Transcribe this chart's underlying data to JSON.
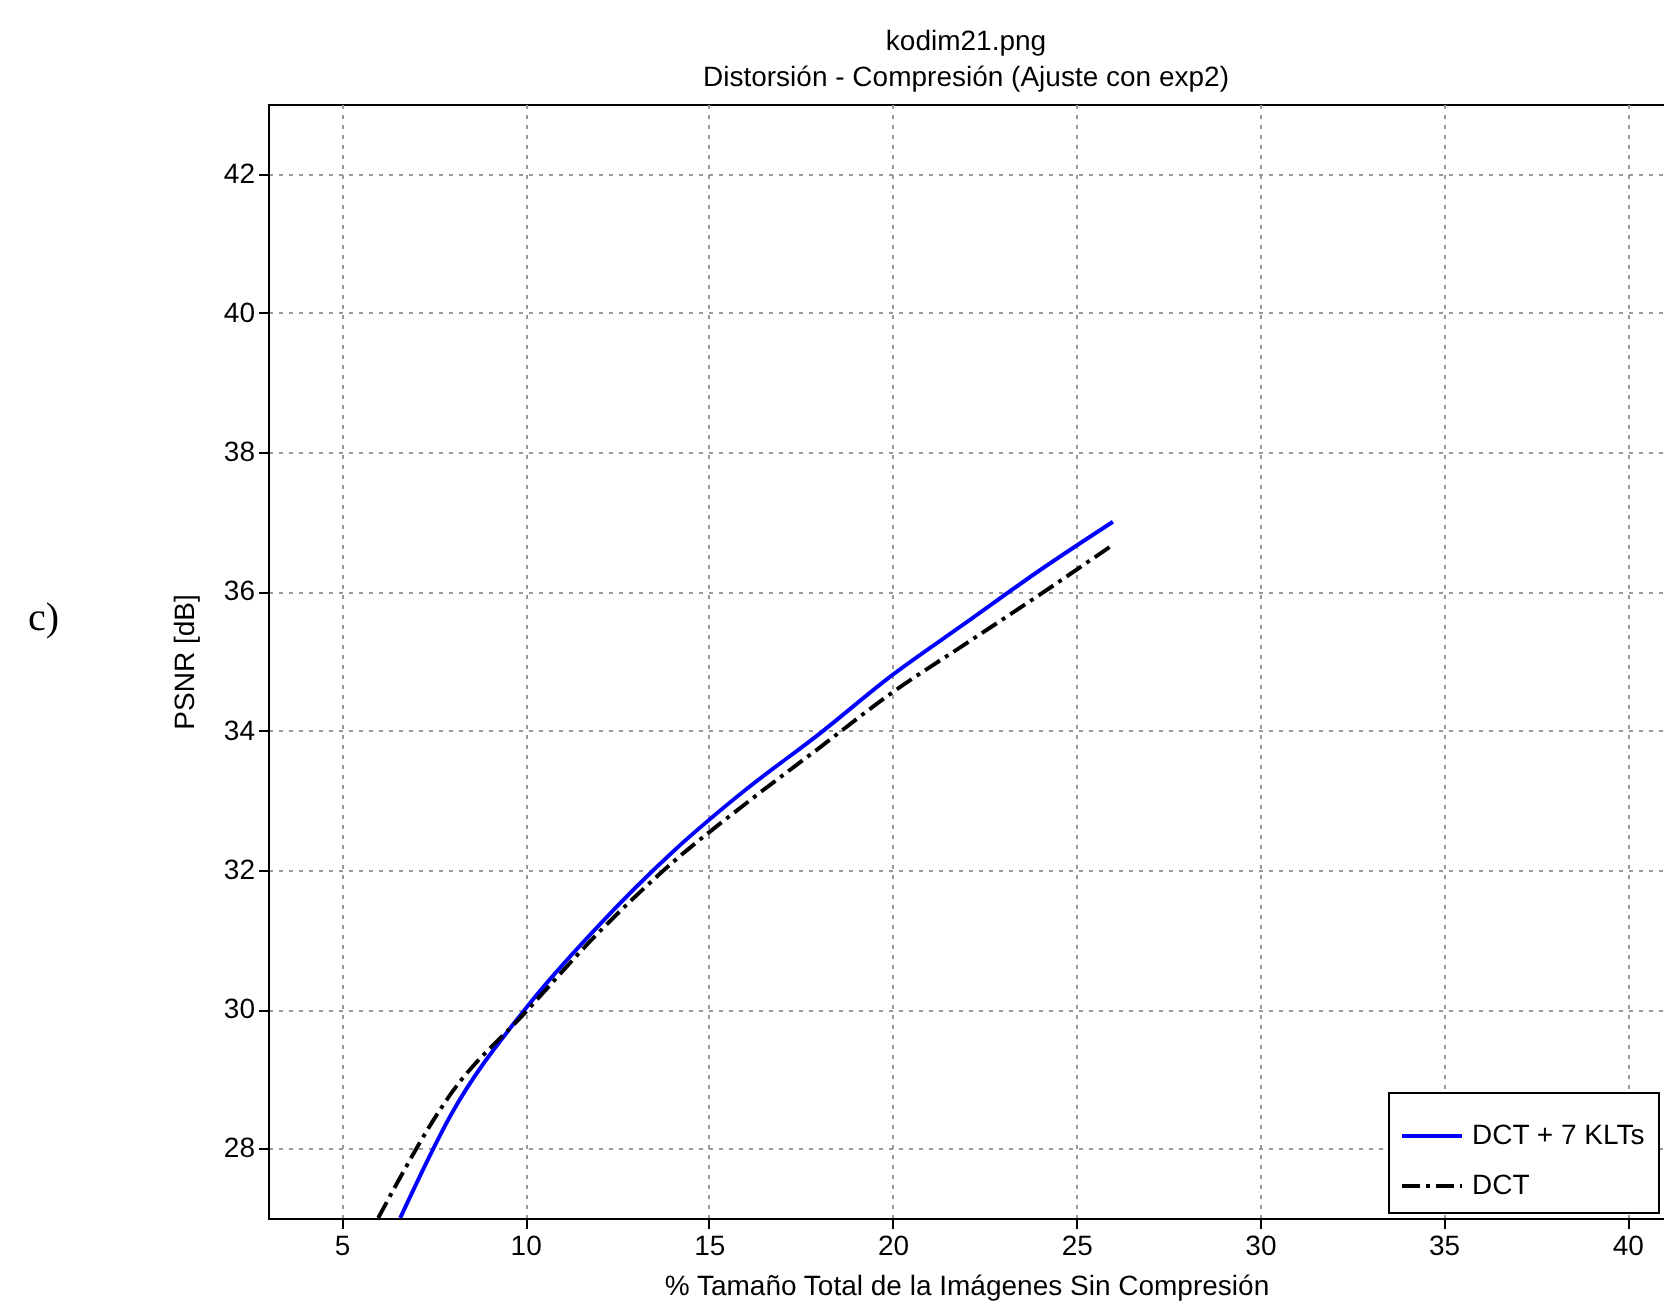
{
  "chart_data": {
    "type": "line",
    "title": "kodim21.png",
    "subtitle": "Distorsión - Compresión (Ajuste con exp2)",
    "xlabel": "% Tamaño Total de la Imágenes Sin Compresión",
    "ylabel": "PSNR [dB]",
    "annotations": [
      "c)"
    ],
    "xlim": [
      3,
      41
    ],
    "xticks": [
      5,
      10,
      15,
      20,
      25,
      30,
      35,
      40
    ],
    "ylim": [
      27,
      43
    ],
    "yticks": [
      28,
      30,
      32,
      34,
      36,
      38,
      40,
      42
    ],
    "grid": true,
    "legend": "bottom right",
    "series": [
      {
        "name": "DCT + 7 KLTs",
        "color": "#0000ff",
        "line_style": "solid",
        "x": [
          6.6,
          8,
          10,
          12,
          14,
          16,
          18,
          20,
          22,
          24,
          26
        ],
        "values": [
          27.0,
          28.5,
          30.0,
          31.2,
          32.25,
          33.15,
          33.95,
          34.8,
          35.55,
          36.3,
          37.0
        ]
      },
      {
        "name": "DCT",
        "color": "#000000",
        "line_style": "dashed",
        "x": [
          6.0,
          8,
          10,
          12,
          14,
          16,
          18,
          20,
          22,
          24,
          26
        ],
        "values": [
          27.0,
          28.8,
          29.95,
          31.1,
          32.1,
          32.95,
          33.75,
          34.55,
          35.25,
          35.95,
          36.67
        ]
      }
    ]
  }
}
